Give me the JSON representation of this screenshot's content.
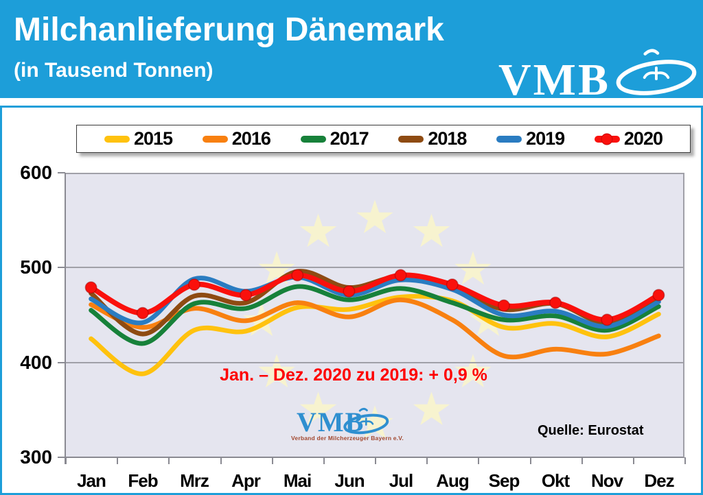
{
  "header": {
    "title": "Milchanlieferung Dänemark",
    "subtitle": "(in Tausend Tonnen)",
    "logo_text": "VMB"
  },
  "panel": {
    "annotation": "Jan. – Dez. 2020 zu 2019:  + 0,9 %",
    "source": "Quelle: Eurostat",
    "watermark": {
      "logo_text": "VMB",
      "caption": "Verband der Milcherzeuger Bayern e.V."
    }
  },
  "colors": {
    "header_blue": "#1d9ed9",
    "plot_background": "#e5e5ef",
    "gridline": "#a0a0a8",
    "annotation_red": "#fe0000",
    "star_yellow": "#f7f3cf"
  },
  "chart_data": {
    "type": "line",
    "title": "Milchanlieferung Dänemark (in Tausend Tonnen)",
    "categories": [
      "Jan",
      "Feb",
      "Mrz",
      "Apr",
      "Mai",
      "Jun",
      "Jul",
      "Aug",
      "Sep",
      "Okt",
      "Nov",
      "Dez"
    ],
    "ylim": [
      300,
      600
    ],
    "yticks": [
      "600",
      "500",
      "400",
      "300"
    ],
    "grid": true,
    "legend_position": "top",
    "line_style": "smooth",
    "series": [
      {
        "name": "2015",
        "color": "#ffc20e",
        "values": [
          425,
          388,
          434,
          433,
          458,
          456,
          469,
          465,
          437,
          441,
          427,
          451
        ]
      },
      {
        "name": "2016",
        "color": "#f88010",
        "values": [
          461,
          437,
          457,
          444,
          463,
          448,
          466,
          445,
          407,
          414,
          409,
          428
        ]
      },
      {
        "name": "2017",
        "color": "#17813a",
        "values": [
          455,
          420,
          462,
          457,
          480,
          466,
          478,
          463,
          445,
          449,
          434,
          459
        ]
      },
      {
        "name": "2018",
        "color": "#8e4b12",
        "values": [
          473,
          430,
          470,
          463,
          496,
          479,
          491,
          479,
          456,
          462,
          442,
          469
        ]
      },
      {
        "name": "2019",
        "color": "#2a7cc1",
        "values": [
          467,
          442,
          488,
          475,
          490,
          471,
          487,
          477,
          450,
          454,
          438,
          464
        ]
      },
      {
        "name": "2020",
        "color": "#fa100c",
        "values": [
          479,
          452,
          482,
          471,
          492,
          475,
          492,
          482,
          460,
          463,
          445,
          471
        ],
        "marker": "circle"
      }
    ]
  }
}
